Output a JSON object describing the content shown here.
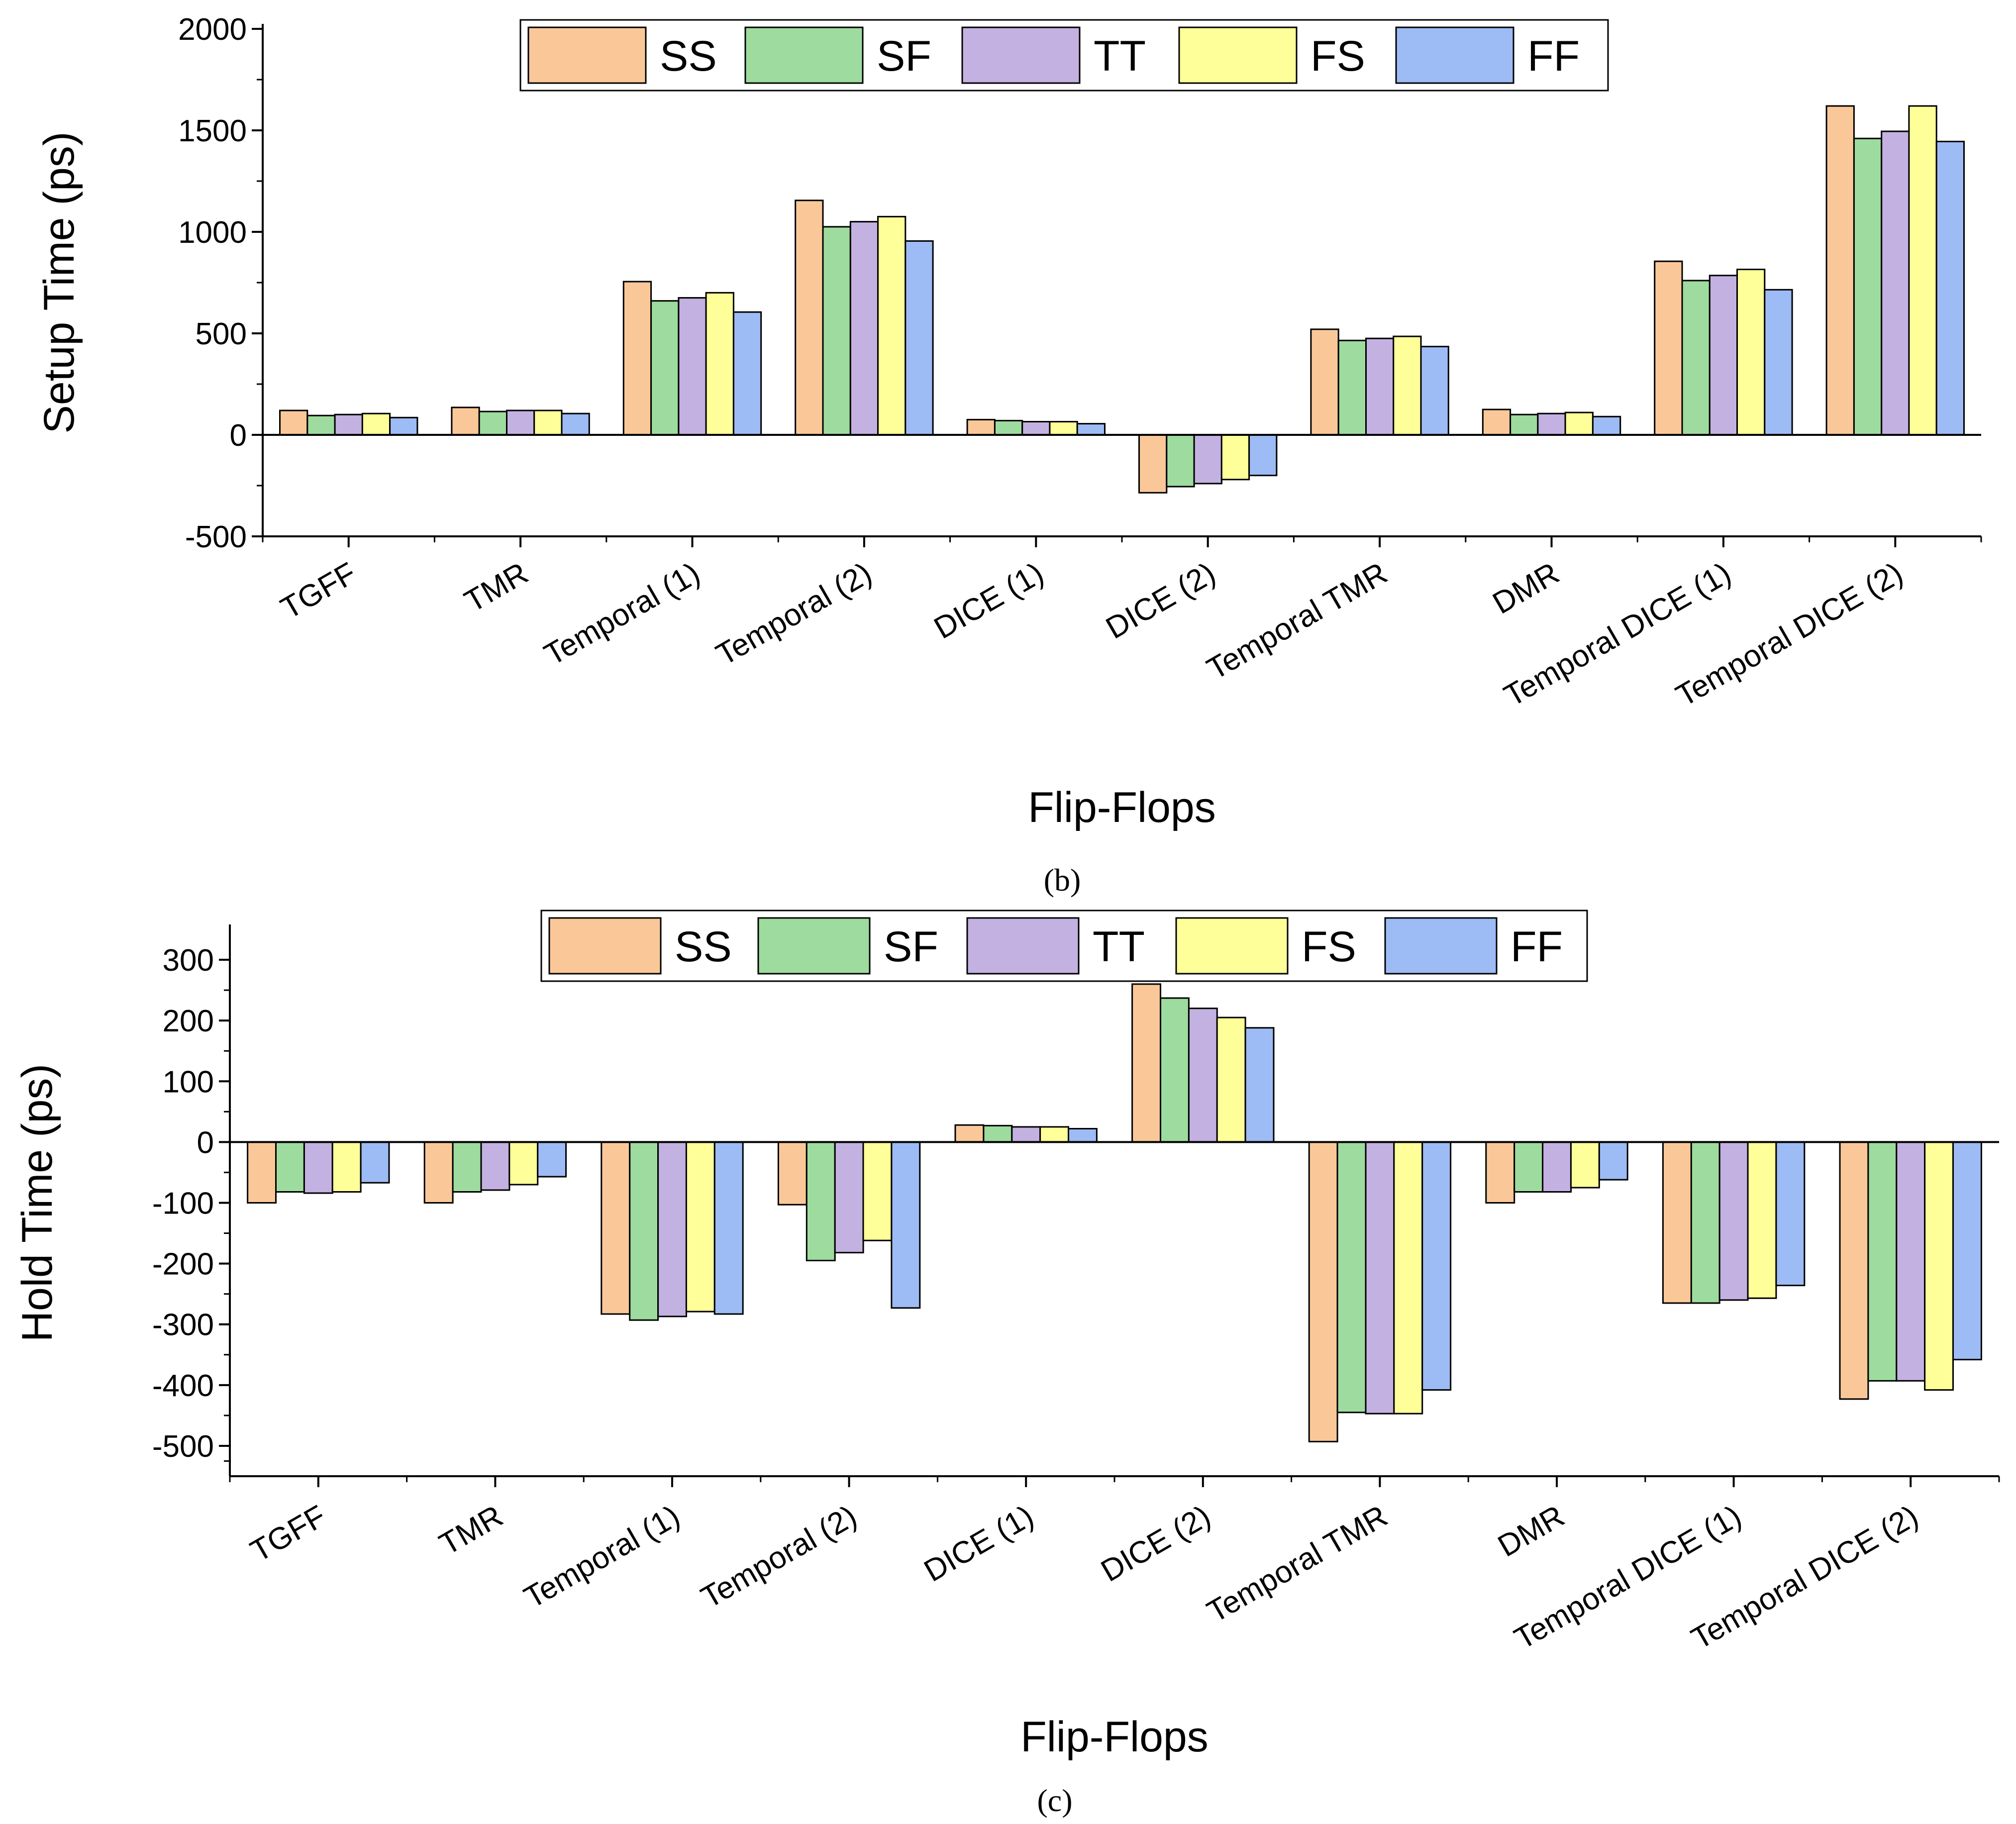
{
  "series_colors": [
    "#FAC898",
    "#9EDB9E",
    "#C3B1E1",
    "#FFFF99",
    "#9DBBF4"
  ],
  "chart_data": [
    {
      "type": "bar",
      "ylabel": "Setup Time (ps)",
      "xlabel": "Flip-Flops",
      "caption": "(b)",
      "ylim": [
        -500,
        2000
      ],
      "yticks": [
        -500,
        0,
        500,
        1000,
        1500,
        2000
      ],
      "categories": [
        "TGFF",
        "TMR",
        "Temporal (1)",
        "Temporal (2)",
        "DICE (1)",
        "DICE (2)",
        "Temporal TMR",
        "DMR",
        "Temporal DICE (1)",
        "Temporal DICE (2)"
      ],
      "series": [
        {
          "name": "SS",
          "values": [
            120,
            135,
            755,
            1155,
            75,
            -285,
            520,
            125,
            855,
            1620
          ]
        },
        {
          "name": "SF",
          "values": [
            95,
            115,
            660,
            1025,
            70,
            -255,
            465,
            100,
            760,
            1460
          ]
        },
        {
          "name": "TT",
          "values": [
            100,
            120,
            675,
            1050,
            65,
            -240,
            475,
            105,
            785,
            1495
          ]
        },
        {
          "name": "FS",
          "values": [
            105,
            120,
            700,
            1075,
            65,
            -220,
            485,
            110,
            815,
            1620
          ]
        },
        {
          "name": "FF",
          "values": [
            85,
            105,
            605,
            955,
            55,
            -200,
            435,
            90,
            715,
            1445
          ]
        }
      ]
    },
    {
      "type": "bar",
      "ylabel": "Hold Time (ps)",
      "xlabel": "Flip-Flops",
      "caption": "(c)",
      "ylim": [
        -550,
        350
      ],
      "yticks": [
        -500,
        -400,
        -300,
        -200,
        -100,
        0,
        100,
        200,
        300
      ],
      "categories": [
        "TGFF",
        "TMR",
        "Temporal (1)",
        "Temporal (2)",
        "DICE (1)",
        "DICE (2)",
        "Temporal TMR",
        "DMR",
        "Temporal DICE (1)",
        "Temporal DICE (2)"
      ],
      "series": [
        {
          "name": "SS",
          "values": [
            -100,
            -100,
            -283,
            -103,
            28,
            260,
            -493,
            -100,
            -265,
            -423
          ]
        },
        {
          "name": "SF",
          "values": [
            -82,
            -82,
            -293,
            -195,
            27,
            237,
            -445,
            -82,
            -265,
            -393
          ]
        },
        {
          "name": "TT",
          "values": [
            -84,
            -79,
            -287,
            -182,
            25,
            220,
            -447,
            -82,
            -260,
            -393
          ]
        },
        {
          "name": "FS",
          "values": [
            -82,
            -70,
            -279,
            -162,
            25,
            205,
            -447,
            -75,
            -257,
            -408
          ]
        },
        {
          "name": "FF",
          "values": [
            -67,
            -57,
            -283,
            -273,
            22,
            188,
            -408,
            -62,
            -236,
            -358
          ]
        }
      ]
    }
  ]
}
